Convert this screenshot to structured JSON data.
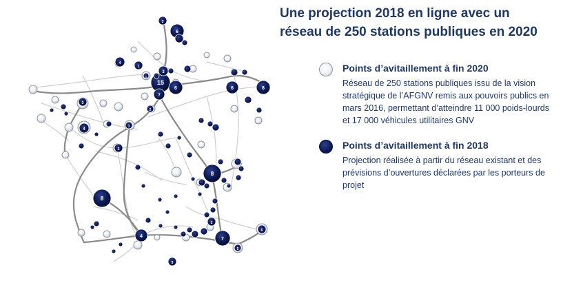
{
  "title": "Une projection 2018 en ligne avec un réseau de 250 stations publiques en 2020",
  "legend": {
    "end_2020": {
      "label": "Points d’avitaillement  à fin 2020",
      "description": "Réseau de 250 stations publiques issu de la vision stratégique de l’AFGNV remis aux pouvoirs publics en mars 2016,  permettant d’atteindre 11 000 poids-lourds et 17 000  véhicules utilitaires GNV"
    },
    "end_2018": {
      "label": "Points d’avitaillement  à fin 2018",
      "description": "Projection réalisée à partir du réseau existant et des prévisions d’ouvertures déclarées par les porteurs de projet"
    }
  },
  "colors": {
    "title_text": "#1f3864",
    "station_2018": "#0d1a55",
    "station_2020": "#eef0f4",
    "road_major": "#7f7f7f",
    "road_minor": "#c8c8c8"
  },
  "map": {
    "station_counts": [
      "15",
      "6",
      "6",
      "8",
      "8",
      "8",
      "6",
      "7",
      "7",
      "4",
      "4",
      "4",
      "2",
      "2",
      "2",
      "3",
      "3",
      "3",
      "1",
      "1",
      "1",
      "2",
      "5",
      "6"
    ]
  }
}
